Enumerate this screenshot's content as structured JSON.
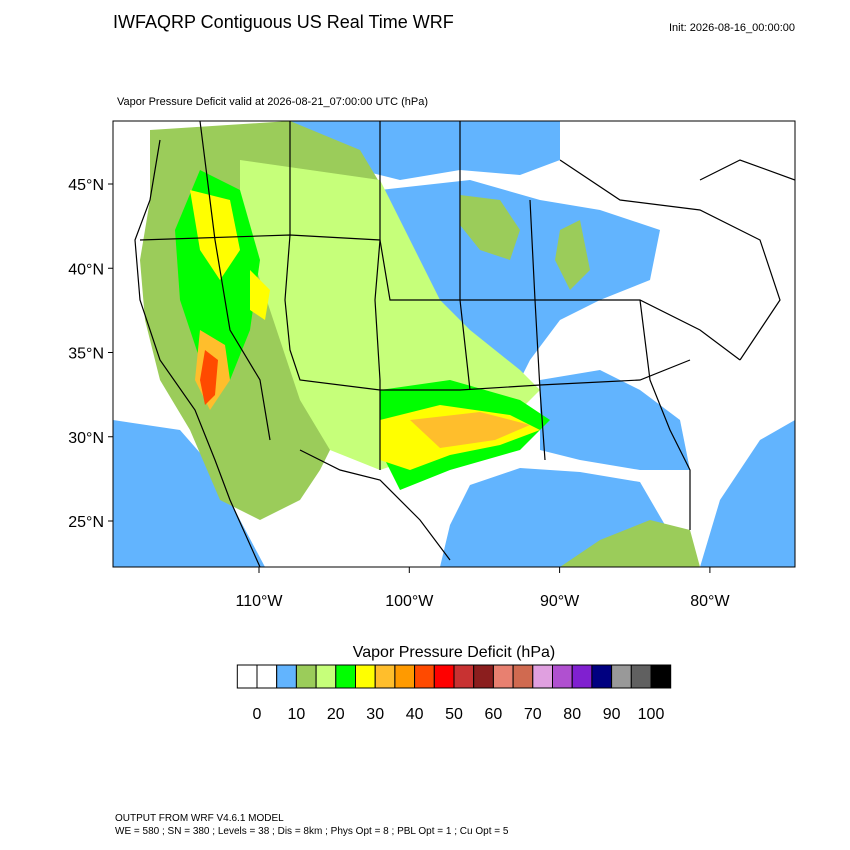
{
  "header": {
    "title": "IWFAQRP Contiguous US Real Time WRF",
    "init": "Init: 2026-08-16_00:00:00"
  },
  "map": {
    "subtitle": "Vapor Pressure Deficit valid at 2026-08-21_07:00:00 UTC   (hPa)",
    "lat_labels": [
      "45°N",
      "40°N",
      "35°N",
      "30°N",
      "25°N"
    ],
    "lon_labels": [
      "110°W",
      "100°W",
      "90°W",
      "80°W"
    ]
  },
  "colorbar": {
    "title": "Vapor Pressure Deficit  (hPa)",
    "ticks": [
      0,
      10,
      20,
      30,
      40,
      50,
      60,
      70,
      80,
      90,
      100
    ],
    "colors": [
      "#ffffff",
      "#ffffff",
      "#62b4fe",
      "#9bcc5a",
      "#c6ff7a",
      "#00ff00",
      "#ffff00",
      "#ffbe2c",
      "#ff9a00",
      "#ff4a00",
      "#ff0000",
      "#c83232",
      "#8b1e1e",
      "#e88070",
      "#d06a50",
      "#e0a0e0",
      "#b050d0",
      "#8020d0",
      "#000080",
      "#999999",
      "#606060",
      "#000000"
    ]
  },
  "footer": {
    "line1": "OUTPUT FROM WRF V4.6.1 MODEL",
    "line2": "WE = 580 ; SN = 380 ; Levels = 38 ; Dis = 8km ; Phys Opt = 8 ; PBL Opt = 1 ; Cu Opt = 5"
  }
}
